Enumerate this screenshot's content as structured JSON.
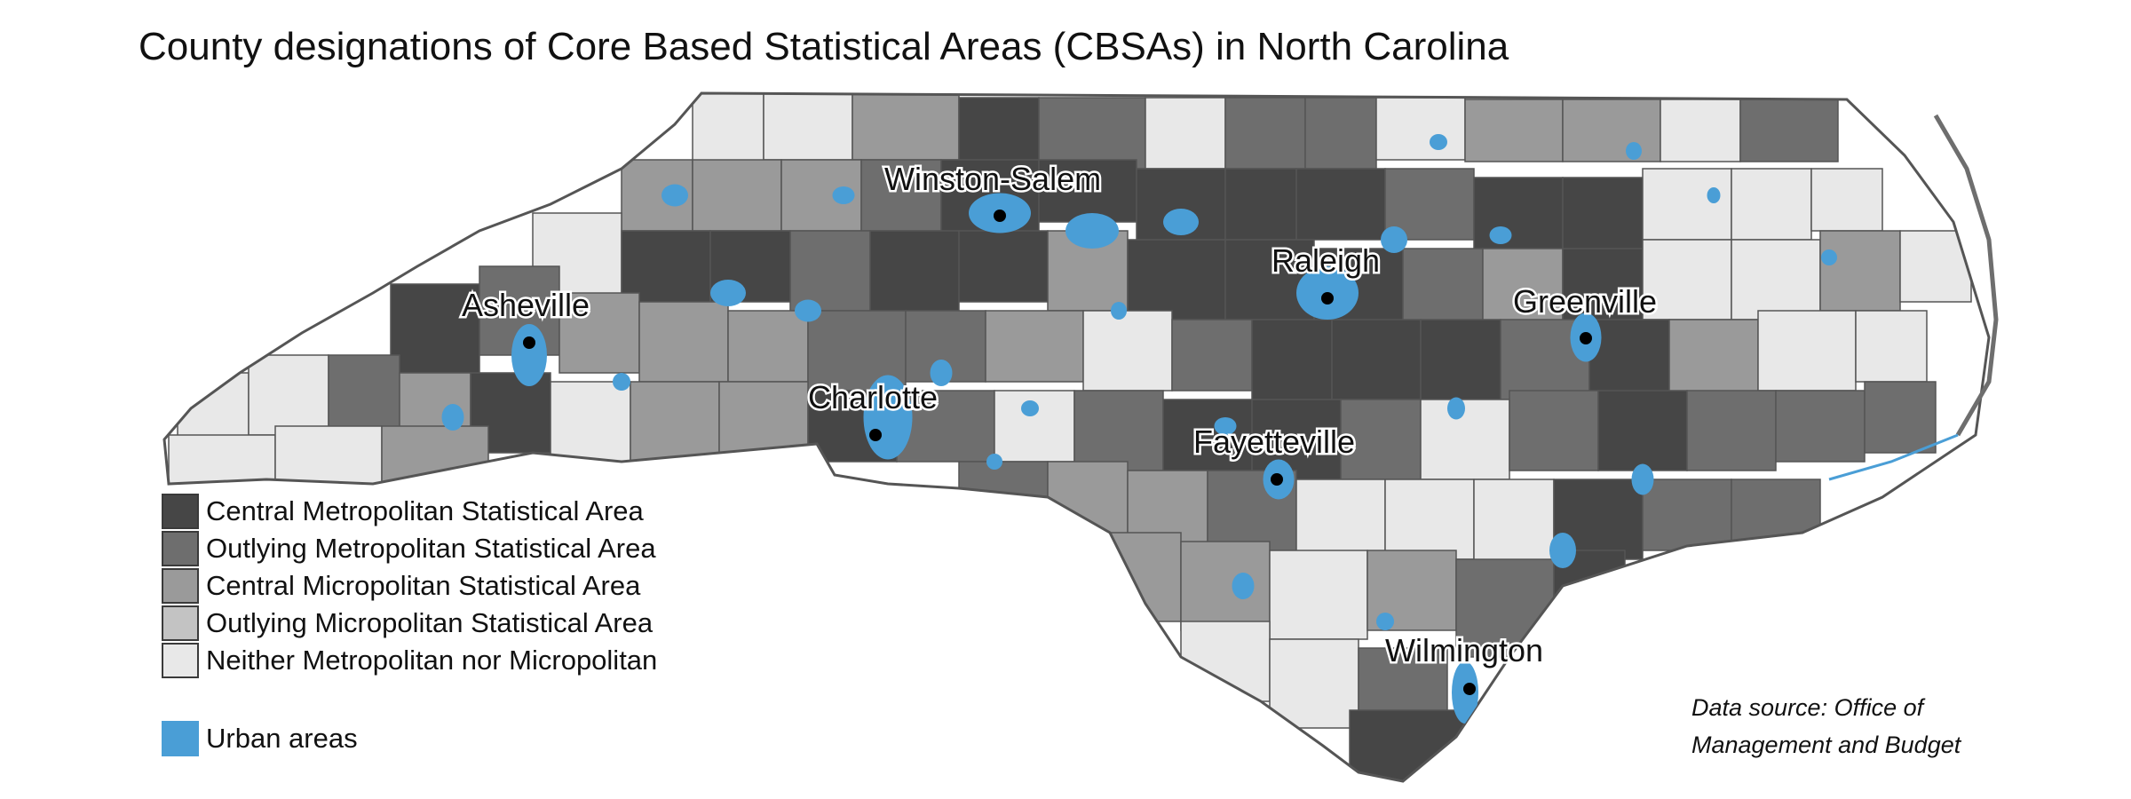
{
  "title": "County designations of Core Based Statistical Areas (CBSAs) in North Carolina",
  "colors": {
    "central_metro": "#464646",
    "outlying_metro": "#6e6e6e",
    "central_micro": "#9a9a9a",
    "outlying_micro": "#c3c3c3",
    "neither": "#e8e8e8",
    "urban": "#4a9ed6",
    "border": "#555555"
  },
  "legend": {
    "categories": [
      {
        "label": "Central Metropolitan Statistical Area",
        "color": "#464646"
      },
      {
        "label": "Outlying Metropolitan Statistical Area",
        "color": "#6e6e6e"
      },
      {
        "label": "Central Micropolitan Statistical Area",
        "color": "#9a9a9a"
      },
      {
        "label": "Outlying Micropolitan Statistical Area",
        "color": "#c3c3c3"
      },
      {
        "label": "Neither Metropolitan nor Micropolitan",
        "color": "#e8e8e8"
      }
    ],
    "urban": {
      "label": "Urban areas",
      "color": "#4a9ed6"
    }
  },
  "cities": [
    "Asheville",
    "Winston-Salem",
    "Charlotte",
    "Raleigh",
    "Fayetteville",
    "Greenville",
    "Wilmington"
  ],
  "source_lines": [
    "Data source: Office of",
    "Management and Budget"
  ]
}
